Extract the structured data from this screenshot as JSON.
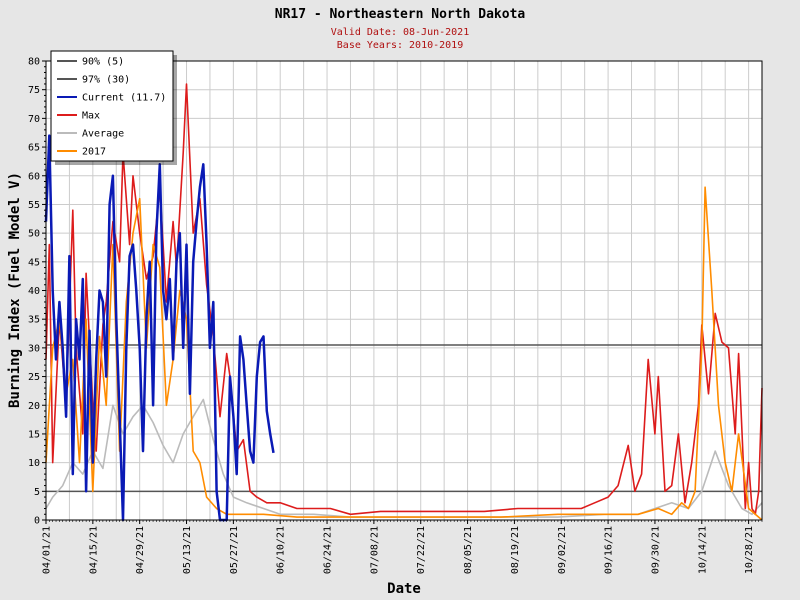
{
  "chart_data": {
    "type": "line",
    "title": "NR17 - Northeastern North Dakota",
    "subtitle_lines": [
      "Valid Date: 08-Jun-2021",
      "Base Years: 2010-2019"
    ],
    "xlabel": "Date",
    "ylabel": "Burning Index (Fuel Model V)",
    "x_start": "2021-04-01",
    "x_end": "2021-11-01",
    "ylim": [
      0,
      80
    ],
    "yticks": [
      0,
      5,
      10,
      15,
      20,
      25,
      30,
      35,
      40,
      45,
      50,
      55,
      60,
      65,
      70,
      75,
      80
    ],
    "xticks": [
      "04/01/21",
      "04/15/21",
      "04/29/21",
      "05/13/21",
      "05/27/21",
      "06/10/21",
      "06/24/21",
      "07/08/21",
      "07/22/21",
      "08/05/21",
      "08/19/21",
      "09/02/21",
      "09/16/21",
      "09/30/21",
      "10/14/21",
      "10/28/21"
    ],
    "grid": true,
    "legend_position": "top-left",
    "reference_lines": [
      {
        "name": "90% (5)",
        "value": 5,
        "color": "#555555"
      },
      {
        "name": "97% (30)",
        "value": 30.5,
        "color": "#555555"
      }
    ],
    "series": [
      {
        "name": "Average",
        "color": "#bbbbbb",
        "x": [
          "2021-04-01",
          "2021-04-03",
          "2021-04-06",
          "2021-04-09",
          "2021-04-12",
          "2021-04-15",
          "2021-04-18",
          "2021-04-21",
          "2021-04-24",
          "2021-04-27",
          "2021-04-30",
          "2021-05-03",
          "2021-05-06",
          "2021-05-09",
          "2021-05-12",
          "2021-05-15",
          "2021-05-18",
          "2021-05-21",
          "2021-05-24",
          "2021-05-27",
          "2021-05-31",
          "2021-06-05",
          "2021-06-10",
          "2021-06-20",
          "2021-07-01",
          "2021-07-15",
          "2021-08-01",
          "2021-08-15",
          "2021-09-01",
          "2021-09-15",
          "2021-09-25",
          "2021-09-30",
          "2021-10-05",
          "2021-10-10",
          "2021-10-14",
          "2021-10-18",
          "2021-10-22",
          "2021-10-26",
          "2021-10-29",
          "2021-11-01"
        ],
        "y": [
          2,
          4,
          6,
          10,
          8,
          12,
          9,
          20,
          15,
          18,
          20,
          17,
          13,
          10,
          15,
          18,
          21,
          14,
          8,
          4,
          3,
          2,
          1,
          1,
          0.5,
          0.5,
          0.5,
          0.5,
          0.5,
          1,
          1,
          2,
          3,
          2,
          5,
          12,
          6,
          2,
          1,
          3
        ]
      },
      {
        "name": "Max",
        "color": "#dd1c1c",
        "x": [
          "2021-04-01",
          "2021-04-02",
          "2021-04-03",
          "2021-04-05",
          "2021-04-07",
          "2021-04-09",
          "2021-04-10",
          "2021-04-12",
          "2021-04-13",
          "2021-04-15",
          "2021-04-16",
          "2021-04-18",
          "2021-04-19",
          "2021-04-21",
          "2021-04-23",
          "2021-04-24",
          "2021-04-26",
          "2021-04-27",
          "2021-04-29",
          "2021-05-01",
          "2021-05-03",
          "2021-05-05",
          "2021-05-07",
          "2021-05-09",
          "2021-05-10",
          "2021-05-12",
          "2021-05-13",
          "2021-05-15",
          "2021-05-17",
          "2021-05-19",
          "2021-05-21",
          "2021-05-23",
          "2021-05-25",
          "2021-05-26",
          "2021-05-28",
          "2021-05-30",
          "2021-06-01",
          "2021-06-03",
          "2021-06-06",
          "2021-06-10",
          "2021-06-15",
          "2021-06-20",
          "2021-06-25",
          "2021-07-01",
          "2021-07-10",
          "2021-07-20",
          "2021-08-01",
          "2021-08-10",
          "2021-08-20",
          "2021-09-01",
          "2021-09-08",
          "2021-09-12",
          "2021-09-16",
          "2021-09-19",
          "2021-09-22",
          "2021-09-24",
          "2021-09-26",
          "2021-09-28",
          "2021-09-30",
          "2021-10-01",
          "2021-10-03",
          "2021-10-05",
          "2021-10-07",
          "2021-10-09",
          "2021-10-11",
          "2021-10-13",
          "2021-10-14",
          "2021-10-16",
          "2021-10-18",
          "2021-10-20",
          "2021-10-22",
          "2021-10-24",
          "2021-10-25",
          "2021-10-27",
          "2021-10-28",
          "2021-10-29",
          "2021-10-30",
          "2021-10-31",
          "2021-11-01"
        ],
        "y": [
          28,
          48,
          10,
          35,
          20,
          54,
          30,
          15,
          43,
          20,
          12,
          34,
          38,
          52,
          45,
          64,
          48,
          60,
          50,
          42,
          46,
          58,
          38,
          52,
          44,
          64,
          76,
          50,
          56,
          41,
          32,
          18,
          29,
          25,
          12,
          14,
          5,
          4,
          3,
          3,
          2,
          2,
          2,
          1,
          1.5,
          1.5,
          1.5,
          1.5,
          2,
          2,
          2,
          3,
          4,
          6,
          13,
          5,
          8,
          28,
          15,
          25,
          5,
          6,
          15,
          3,
          10,
          20,
          34,
          22,
          36,
          31,
          30,
          15,
          29,
          2,
          10,
          2,
          1,
          5,
          23
        ]
      },
      {
        "name": "2017",
        "color": "#ff8c00",
        "x": [
          "2021-04-01",
          "2021-04-03",
          "2021-04-05",
          "2021-04-07",
          "2021-04-09",
          "2021-04-11",
          "2021-04-13",
          "2021-04-15",
          "2021-04-17",
          "2021-04-19",
          "2021-04-21",
          "2021-04-23",
          "2021-04-25",
          "2021-04-27",
          "2021-04-29",
          "2021-05-01",
          "2021-05-03",
          "2021-05-05",
          "2021-05-07",
          "2021-05-09",
          "2021-05-11",
          "2021-05-13",
          "2021-05-15",
          "2021-05-17",
          "2021-05-19",
          "2021-05-22",
          "2021-05-25",
          "2021-05-29",
          "2021-06-05",
          "2021-06-15",
          "2021-07-01",
          "2021-07-15",
          "2021-08-01",
          "2021-08-15",
          "2021-09-01",
          "2021-09-15",
          "2021-09-25",
          "2021-10-01",
          "2021-10-05",
          "2021-10-08",
          "2021-10-10",
          "2021-10-12",
          "2021-10-14",
          "2021-10-15",
          "2021-10-17",
          "2021-10-19",
          "2021-10-21",
          "2021-10-23",
          "2021-10-25",
          "2021-10-28",
          "2021-11-01"
        ],
        "y": [
          10,
          30,
          35,
          22,
          28,
          10,
          35,
          5,
          32,
          20,
          48,
          12,
          38,
          50,
          56,
          30,
          48,
          44,
          20,
          28,
          40,
          35,
          12,
          10,
          4,
          2,
          1,
          1,
          1,
          0.5,
          0.5,
          0.5,
          0.5,
          0.5,
          1,
          1,
          1,
          2,
          1,
          3,
          2,
          5,
          30,
          58,
          40,
          20,
          10,
          5,
          15,
          2,
          0
        ]
      },
      {
        "name": "Current (11.7)",
        "color": "#0a1ab5",
        "x": [
          "2021-04-01",
          "2021-04-02",
          "2021-04-03",
          "2021-04-04",
          "2021-04-05",
          "2021-04-06",
          "2021-04-07",
          "2021-04-08",
          "2021-04-09",
          "2021-04-10",
          "2021-04-11",
          "2021-04-12",
          "2021-04-13",
          "2021-04-14",
          "2021-04-15",
          "2021-04-16",
          "2021-04-17",
          "2021-04-18",
          "2021-04-19",
          "2021-04-20",
          "2021-04-21",
          "2021-04-22",
          "2021-04-23",
          "2021-04-24",
          "2021-04-25",
          "2021-04-26",
          "2021-04-27",
          "2021-04-28",
          "2021-04-29",
          "2021-04-30",
          "2021-05-01",
          "2021-05-02",
          "2021-05-03",
          "2021-05-04",
          "2021-05-05",
          "2021-05-06",
          "2021-05-07",
          "2021-05-08",
          "2021-05-09",
          "2021-05-10",
          "2021-05-11",
          "2021-05-12",
          "2021-05-13",
          "2021-05-14",
          "2021-05-15",
          "2021-05-16",
          "2021-05-17",
          "2021-05-18",
          "2021-05-19",
          "2021-05-20",
          "2021-05-21",
          "2021-05-22",
          "2021-05-23",
          "2021-05-24",
          "2021-05-25",
          "2021-05-26",
          "2021-05-27",
          "2021-05-28",
          "2021-05-29",
          "2021-05-30",
          "2021-05-31",
          "2021-06-01",
          "2021-06-02",
          "2021-06-03",
          "2021-06-04",
          "2021-06-05",
          "2021-06-06",
          "2021-06-07",
          "2021-06-08"
        ],
        "y": [
          52,
          67,
          40,
          28,
          38,
          30,
          18,
          46,
          8,
          35,
          28,
          42,
          5,
          33,
          10,
          28,
          40,
          38,
          25,
          55,
          60,
          35,
          18,
          0,
          30,
          46,
          48,
          40,
          30,
          12,
          35,
          45,
          20,
          50,
          62,
          40,
          35,
          42,
          28,
          45,
          50,
          30,
          48,
          22,
          45,
          52,
          58,
          62,
          48,
          30,
          38,
          5,
          0,
          0,
          0,
          25,
          18,
          8,
          32,
          28,
          20,
          12,
          10,
          25,
          31,
          32,
          19,
          15,
          11.7
        ]
      }
    ]
  }
}
